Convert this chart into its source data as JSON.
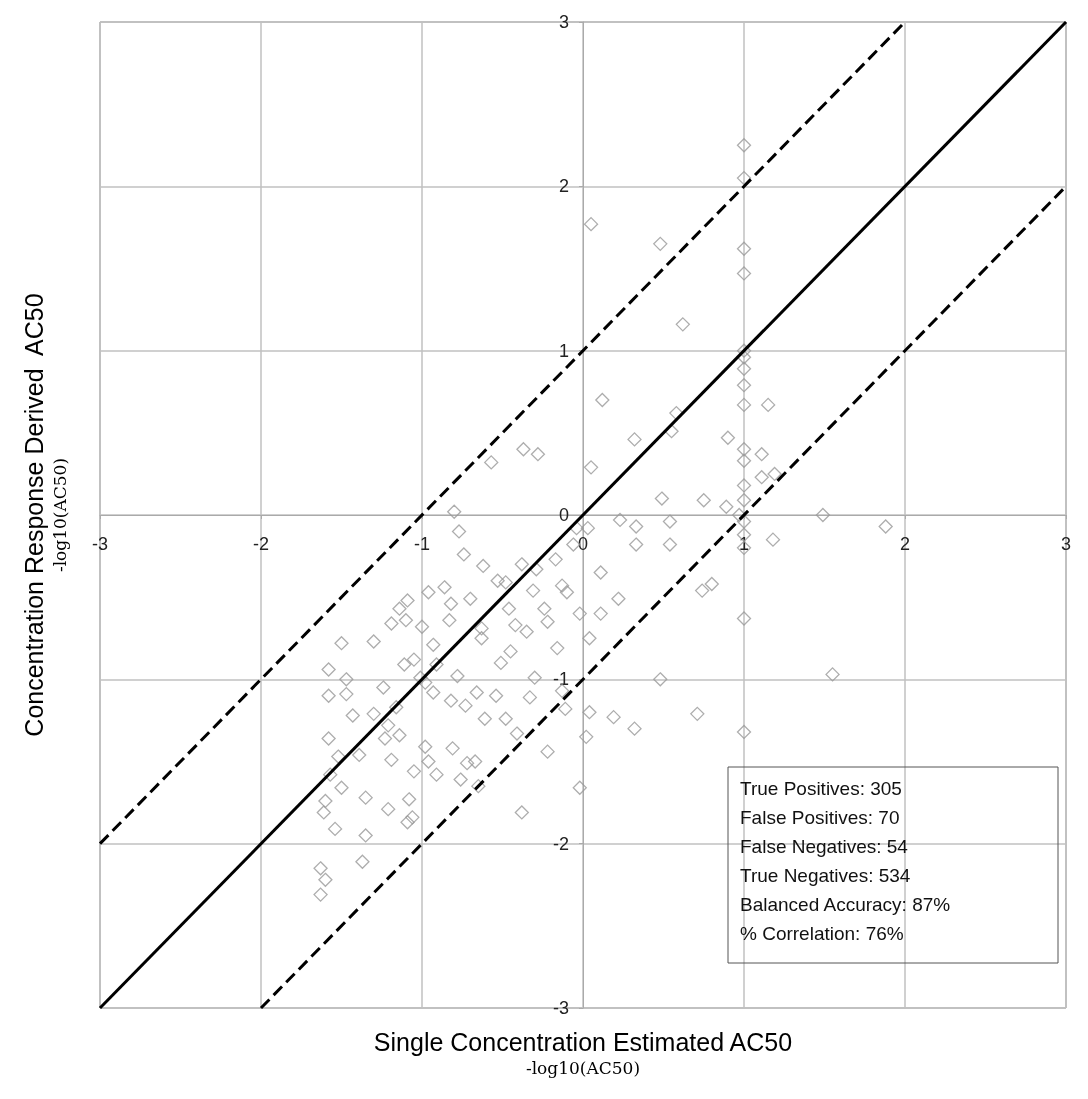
{
  "chart_data": {
    "type": "scatter",
    "xlabel": "Single Concentration Estimated AC50\n-log10(AC50)",
    "ylabel": "Concentration Response Derived  AC50\n-log10(AC50)",
    "xlim": [
      -3,
      3
    ],
    "ylim": [
      -3,
      3
    ],
    "xticks": [
      -3,
      -2,
      -1,
      0,
      1,
      2,
      3
    ],
    "yticks": [
      -3,
      -2,
      -1,
      0,
      1,
      2,
      3
    ],
    "grid": true,
    "annotations": [
      "True Positives: 305",
      "False Positives: 70",
      "False Negatives: 54",
      "True Negatives: 534",
      "Balanced Accuracy: 87%",
      "% Correlation: 76%"
    ],
    "series": [
      {
        "marker": "diamond",
        "color": "#999999",
        "x": [
          1.0,
          1.0,
          0.05,
          0.48,
          1.0,
          1.0,
          0.62,
          1.0,
          1.0,
          1.0,
          1.0,
          1.0,
          1.15,
          0.12,
          0.9,
          0.32,
          0.58,
          0.55,
          1.0,
          1.0,
          1.11,
          0.05,
          1.19,
          1.11,
          1.0,
          0.49,
          0.75,
          0.89,
          1.0,
          1.49,
          1.88,
          0.97,
          0.23,
          0.33,
          0.54,
          0.03,
          0.33,
          0.54,
          1.0,
          1.0,
          1.0,
          1.18,
          0.11,
          0.22,
          0.74,
          0.8,
          1.0,
          1.55,
          0.48,
          0.71,
          1.0,
          0.04,
          0.11,
          0.19,
          0.32,
          0.02,
          -0.02,
          -0.13,
          -0.11,
          -0.22,
          0.04,
          -0.33,
          -0.38,
          -0.57,
          -0.37,
          -0.28,
          -0.8,
          -0.77,
          -0.74,
          -0.38,
          -0.29,
          -0.17,
          -0.06,
          -0.04,
          -0.1,
          -0.24,
          -0.42,
          -0.45,
          -0.63,
          -0.63,
          -0.48,
          -0.86,
          -0.83,
          -1.0,
          -0.93,
          -1.3,
          -1.05,
          -1.14,
          -1.1,
          -1.19,
          -1.47,
          -1.47,
          -1.58,
          -1.58,
          -1.52,
          -1.57,
          -1.5,
          -1.6,
          -1.61,
          -1.54,
          -1.37,
          -1.63,
          -1.6,
          -1.63,
          -1.35,
          -1.3,
          -1.21,
          -1.14,
          -1.19,
          -1.05,
          -0.98,
          -1.35,
          -1.09,
          -0.91,
          -0.81,
          -0.73,
          -0.54,
          -0.66,
          -0.82,
          -0.93,
          -0.76,
          -0.72,
          -0.96,
          -0.65,
          -0.67,
          -1.06,
          -1.21,
          -1.08,
          -1.39,
          -1.24,
          -0.98,
          -0.48,
          -0.41,
          -0.61,
          -1.16,
          -1.11,
          -0.91,
          -0.82,
          -0.96,
          -0.78,
          -0.46,
          -0.35,
          -0.22,
          -0.02,
          -0.16,
          -0.3,
          -0.51,
          -0.13,
          -0.31,
          -0.62,
          -0.53,
          -0.7,
          -1.09,
          -1.5,
          -1.58,
          -1.01,
          -1.43,
          -1.23
        ],
        "values": [
          2.25,
          2.05,
          1.77,
          1.65,
          1.62,
          1.47,
          1.16,
          1.0,
          0.96,
          0.89,
          0.79,
          0.67,
          0.67,
          0.7,
          0.47,
          0.46,
          0.62,
          0.51,
          0.4,
          0.33,
          0.37,
          0.29,
          0.25,
          0.23,
          0.18,
          0.1,
          0.09,
          0.05,
          0.09,
          0.0,
          -0.07,
          0.0,
          -0.03,
          -0.07,
          -0.04,
          -0.08,
          -0.18,
          -0.18,
          -0.04,
          -0.12,
          -0.2,
          -0.15,
          -0.35,
          -0.51,
          -0.46,
          -0.42,
          -0.63,
          -0.97,
          -1.0,
          -1.21,
          -1.32,
          -0.75,
          -0.6,
          -1.23,
          -1.3,
          -1.35,
          -1.66,
          -1.07,
          -1.18,
          -1.44,
          -1.2,
          -1.11,
          -1.81,
          0.32,
          0.4,
          0.37,
          0.02,
          -0.1,
          -0.24,
          -0.3,
          -0.33,
          -0.27,
          -0.18,
          -0.08,
          -0.47,
          -0.57,
          -0.67,
          -0.83,
          -0.75,
          -0.69,
          -0.41,
          -0.44,
          -0.64,
          -0.68,
          -0.79,
          -0.77,
          -0.88,
          -0.57,
          -0.64,
          -0.66,
          -1.0,
          -1.09,
          -1.1,
          -1.36,
          -1.47,
          -1.58,
          -1.66,
          -1.74,
          -1.81,
          -1.91,
          -2.11,
          -2.31,
          -2.22,
          -2.15,
          -1.72,
          -1.21,
          -1.28,
          -1.34,
          -1.49,
          -1.56,
          -1.41,
          -1.95,
          -1.87,
          -1.58,
          -1.42,
          -1.16,
          -1.1,
          -1.08,
          -1.13,
          -1.08,
          -1.61,
          -1.51,
          -1.5,
          -1.65,
          -1.5,
          -1.84,
          -1.79,
          -1.73,
          -1.46,
          -1.05,
          -1.02,
          -1.24,
          -1.33,
          -1.24,
          -1.17,
          -0.91,
          -0.91,
          -0.54,
          -0.47,
          -0.98,
          -0.57,
          -0.71,
          -0.65,
          -0.6,
          -0.81,
          -0.99,
          -0.9,
          -0.43,
          -0.46,
          -0.31,
          -0.4,
          -0.51,
          -0.52,
          -0.78,
          -0.94,
          -0.99,
          -1.22,
          -1.36
        ]
      },
      {
        "type": "line",
        "line_style": "solid",
        "color": "#000000",
        "x": [
          -3,
          3
        ],
        "values": [
          -3,
          3
        ]
      },
      {
        "type": "line",
        "line_style": "dashed",
        "color": "#000000",
        "x": [
          -3,
          2
        ],
        "values": [
          -2,
          3
        ]
      },
      {
        "type": "line",
        "line_style": "dashed",
        "color": "#000000",
        "x": [
          -2,
          3
        ],
        "values": [
          -3,
          2
        ]
      }
    ]
  }
}
